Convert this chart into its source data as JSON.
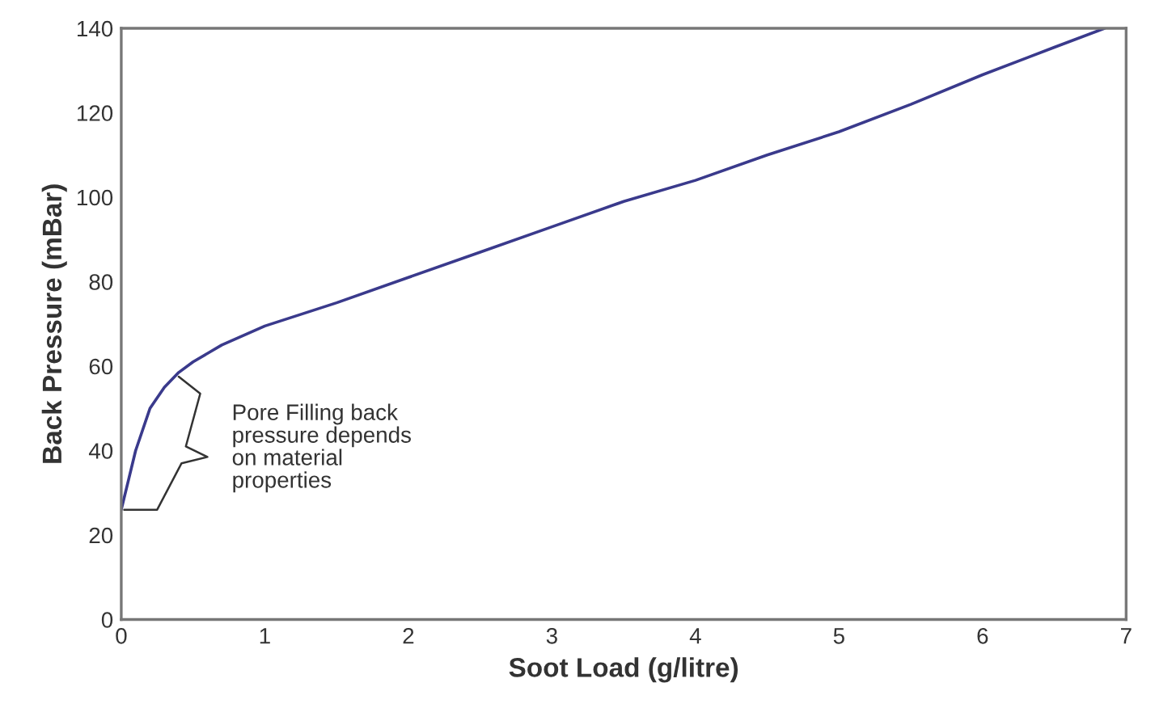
{
  "chart_data": {
    "type": "line",
    "xlabel": "Soot Load (g/litre)",
    "ylabel": "Back Pressure (mBar)",
    "x": [
      0,
      0.05,
      0.1,
      0.2,
      0.3,
      0.4,
      0.5,
      0.7,
      1,
      1.5,
      2,
      2.5,
      3,
      3.5,
      4,
      4.5,
      5,
      5.5,
      6,
      6.5,
      6.85
    ],
    "series": [
      {
        "color": "#3a3a8c",
        "values": [
          26,
          33,
          40,
          50,
          55,
          58.5,
          61,
          65,
          69.5,
          75,
          81,
          87,
          93,
          99,
          104,
          110,
          115.5,
          122,
          129,
          135.5,
          140
        ]
      }
    ],
    "xlim": [
      0,
      7
    ],
    "xticks": [
      0,
      1,
      2,
      3,
      4,
      5,
      6,
      7
    ],
    "ylim": [
      0,
      140
    ],
    "yticks": [
      0,
      20,
      40,
      60,
      80,
      100,
      120,
      140
    ],
    "grid": false,
    "marker": "none",
    "line_style": "solid",
    "annotations": [
      "Pore Filling back\npressure depends\non material\nproperties"
    ]
  }
}
